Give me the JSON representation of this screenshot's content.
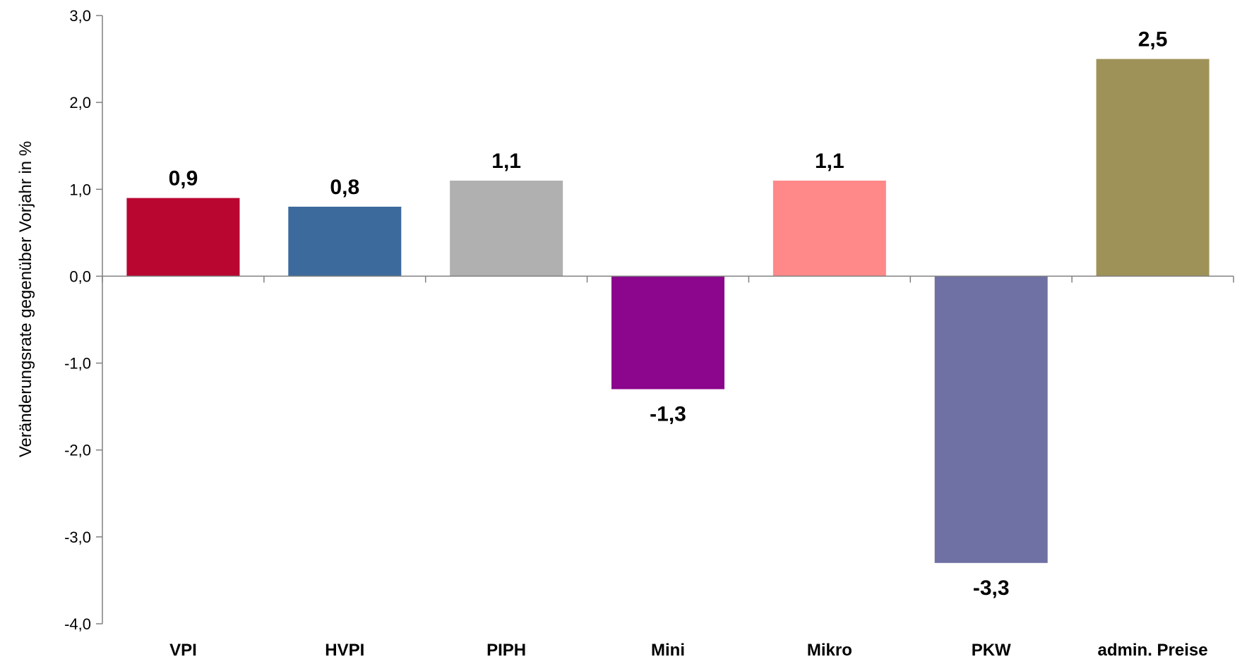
{
  "chart_data": {
    "type": "bar",
    "title": "",
    "xlabel": "",
    "ylabel": "Veränderungsrate gegenüber Vorjahr in %",
    "ylim": [
      -4.0,
      3.0
    ],
    "yticks": [
      3.0,
      2.0,
      1.0,
      0.0,
      -1.0,
      -2.0,
      -3.0,
      -4.0
    ],
    "ytick_labels": [
      "3,0",
      "2,0",
      "1,0",
      "0,0",
      "-1,0",
      "-2,0",
      "-3,0",
      "-4,0"
    ],
    "categories": [
      "VPI",
      "HVPI",
      "PIPH",
      "Mini",
      "Mikro",
      "PKW",
      "admin. Preise"
    ],
    "values": [
      0.9,
      0.8,
      1.1,
      -1.3,
      1.1,
      -3.3,
      2.5
    ],
    "value_labels": [
      "0,9",
      "0,8",
      "1,1",
      "-1,3",
      "1,1",
      "-3,3",
      "2,5"
    ],
    "colors": [
      "#B90631",
      "#3D6A9C",
      "#B0B0B0",
      "#8B068C",
      "#FF8989",
      "#6F70A3",
      "#9E9258"
    ],
    "grid": false,
    "legend": "none"
  }
}
